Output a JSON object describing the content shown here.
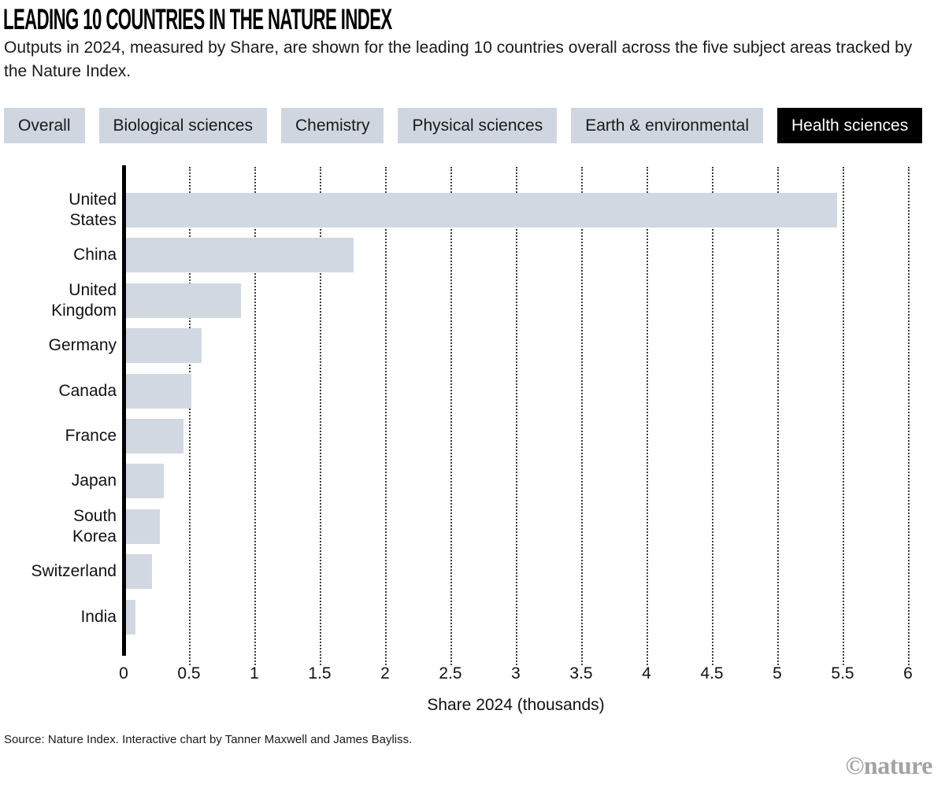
{
  "header": {
    "title": "LEADING 10 COUNTRIES IN THE NATURE INDEX",
    "subtitle": "Outputs in 2024, measured by Share, are shown for the leading 10 countries overall across the five subject areas tracked by the Nature Index."
  },
  "tabs": [
    {
      "label": "Overall",
      "selected": false
    },
    {
      "label": "Biological sciences",
      "selected": false
    },
    {
      "label": "Chemistry",
      "selected": false
    },
    {
      "label": "Physical sciences",
      "selected": false
    },
    {
      "label": "Earth & environmental",
      "selected": false
    },
    {
      "label": "Health sciences",
      "selected": true
    }
  ],
  "chart_data": {
    "type": "bar",
    "orientation": "horizontal",
    "categories": [
      "United States",
      "China",
      "United Kingdom",
      "Germany",
      "Canada",
      "France",
      "Japan",
      "South Korea",
      "Switzerland",
      "India"
    ],
    "values": [
      5.44,
      1.74,
      0.88,
      0.58,
      0.5,
      0.44,
      0.29,
      0.26,
      0.2,
      0.07
    ],
    "xlabel": "Share 2024 (thousands)",
    "xlim": [
      0,
      6
    ],
    "xticks": [
      0,
      0.5,
      1,
      1.5,
      2,
      2.5,
      3,
      3.5,
      4,
      4.5,
      5,
      5.5,
      6
    ],
    "xtick_labels": [
      "0",
      "0.5",
      "1",
      "1.5",
      "2",
      "2.5",
      "3",
      "3.5",
      "4",
      "4.5",
      "5",
      "5.5",
      "6"
    ],
    "grid": "vertical-dotted",
    "legend": "none"
  },
  "footer": {
    "source": "Source: Nature Index. Interactive chart by Tanner Maxwell and James Bayliss.",
    "brand": "©nature"
  },
  "colors": {
    "bar": "#d2d8e1",
    "tab_bg": "#cfd6df",
    "tab_selected_bg": "#000000",
    "tab_selected_text": "#ffffff",
    "axis": "#000000",
    "gridline": "#3d3d3d",
    "brand_gray": "#a3a3a3"
  }
}
